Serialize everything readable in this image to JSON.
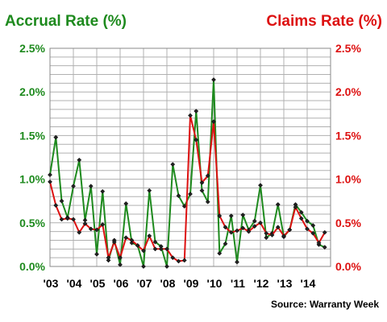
{
  "chart_data": {
    "type": "line",
    "left_axis_title": "Accrual Rate (%)",
    "right_axis_title": "Claims Rate (%)",
    "source": "Source: Warranty Week",
    "colors": {
      "accrual": "#1e8a1e",
      "claims": "#dd1111",
      "grid": "#b0b0b0",
      "plot_border": "#888888"
    },
    "ylim": [
      0,
      2.5
    ],
    "yticks_left": [
      {
        "v": 0,
        "label": "0.0%"
      },
      {
        "v": 0.5,
        "label": "0.5%"
      },
      {
        "v": 1.0,
        "label": "1.0%"
      },
      {
        "v": 1.5,
        "label": "1.5%"
      },
      {
        "v": 2.0,
        "label": "2.0%"
      },
      {
        "v": 2.5,
        "label": "2.5%"
      }
    ],
    "yticks_right": [
      {
        "v": 0,
        "label": "0.0%"
      },
      {
        "v": 0.5,
        "label": "0.5%"
      },
      {
        "v": 1.0,
        "label": "1.0%"
      },
      {
        "v": 1.5,
        "label": "1.5%"
      },
      {
        "v": 2.0,
        "label": "2.0%"
      },
      {
        "v": 2.5,
        "label": "2.5%"
      }
    ],
    "xlim": [
      2003,
      2015
    ],
    "xticks": [
      {
        "v": 2003,
        "label": "'03"
      },
      {
        "v": 2004,
        "label": "'04"
      },
      {
        "v": 2005,
        "label": "'05"
      },
      {
        "v": 2006,
        "label": "'06"
      },
      {
        "v": 2007,
        "label": "'07"
      },
      {
        "v": 2008,
        "label": "'08"
      },
      {
        "v": 2009,
        "label": "'09"
      },
      {
        "v": 2010,
        "label": "'10"
      },
      {
        "v": 2011,
        "label": "'11"
      },
      {
        "v": 2012,
        "label": "'12"
      },
      {
        "v": 2013,
        "label": "'13"
      },
      {
        "v": 2014,
        "label": "'14"
      }
    ],
    "series": [
      {
        "key": "accrual",
        "axis": "left",
        "points": [
          [
            2003.0,
            1.05
          ],
          [
            2003.25,
            1.48
          ],
          [
            2003.5,
            0.75
          ],
          [
            2003.75,
            0.56
          ],
          [
            2004.0,
            0.92
          ],
          [
            2004.25,
            1.22
          ],
          [
            2004.5,
            0.53
          ],
          [
            2004.75,
            0.92
          ],
          [
            2005.0,
            0.14
          ],
          [
            2005.25,
            0.86
          ],
          [
            2005.5,
            0.07
          ],
          [
            2005.75,
            0.3
          ],
          [
            2006.0,
            0.02
          ],
          [
            2006.25,
            0.72
          ],
          [
            2006.5,
            0.27
          ],
          [
            2006.75,
            0.24
          ],
          [
            2007.0,
            0.0
          ],
          [
            2007.25,
            0.87
          ],
          [
            2007.5,
            0.28
          ],
          [
            2007.75,
            0.23
          ],
          [
            2008.0,
            0.0
          ],
          [
            2008.25,
            1.17
          ],
          [
            2008.5,
            0.81
          ],
          [
            2008.75,
            0.69
          ],
          [
            2009.0,
            0.83
          ],
          [
            2009.25,
            1.78
          ],
          [
            2009.5,
            0.87
          ],
          [
            2009.75,
            0.74
          ],
          [
            2010.0,
            2.14
          ],
          [
            2010.25,
            0.15
          ],
          [
            2010.5,
            0.26
          ],
          [
            2010.75,
            0.58
          ],
          [
            2011.0,
            0.05
          ],
          [
            2011.25,
            0.59
          ],
          [
            2011.5,
            0.42
          ],
          [
            2011.75,
            0.52
          ],
          [
            2012.0,
            0.93
          ],
          [
            2012.25,
            0.33
          ],
          [
            2012.5,
            0.38
          ],
          [
            2012.75,
            0.71
          ],
          [
            2013.0,
            0.34
          ],
          [
            2013.25,
            0.42
          ],
          [
            2013.5,
            0.71
          ],
          [
            2013.75,
            0.62
          ],
          [
            2014.0,
            0.52
          ],
          [
            2014.25,
            0.47
          ],
          [
            2014.5,
            0.25
          ],
          [
            2014.75,
            0.22
          ]
        ]
      },
      {
        "key": "claims",
        "axis": "right",
        "points": [
          [
            2003.0,
            0.97
          ],
          [
            2003.25,
            0.7
          ],
          [
            2003.5,
            0.54
          ],
          [
            2003.75,
            0.55
          ],
          [
            2004.0,
            0.54
          ],
          [
            2004.25,
            0.39
          ],
          [
            2004.5,
            0.49
          ],
          [
            2004.75,
            0.43
          ],
          [
            2005.0,
            0.42
          ],
          [
            2005.25,
            0.48
          ],
          [
            2005.5,
            0.1
          ],
          [
            2005.75,
            0.28
          ],
          [
            2006.0,
            0.1
          ],
          [
            2006.25,
            0.33
          ],
          [
            2006.5,
            0.3
          ],
          [
            2006.75,
            0.24
          ],
          [
            2007.0,
            0.18
          ],
          [
            2007.25,
            0.35
          ],
          [
            2007.5,
            0.2
          ],
          [
            2007.75,
            0.2
          ],
          [
            2008.0,
            0.2
          ],
          [
            2008.25,
            0.1
          ],
          [
            2008.5,
            0.06
          ],
          [
            2008.75,
            0.07
          ],
          [
            2009.0,
            1.73
          ],
          [
            2009.25,
            1.45
          ],
          [
            2009.5,
            0.96
          ],
          [
            2009.75,
            1.04
          ],
          [
            2010.0,
            1.66
          ],
          [
            2010.25,
            0.58
          ],
          [
            2010.5,
            0.45
          ],
          [
            2010.75,
            0.39
          ],
          [
            2011.0,
            0.41
          ],
          [
            2011.25,
            0.44
          ],
          [
            2011.5,
            0.4
          ],
          [
            2011.75,
            0.46
          ],
          [
            2012.0,
            0.5
          ],
          [
            2012.25,
            0.38
          ],
          [
            2012.5,
            0.36
          ],
          [
            2012.75,
            0.45
          ],
          [
            2013.0,
            0.35
          ],
          [
            2013.25,
            0.42
          ],
          [
            2013.5,
            0.68
          ],
          [
            2013.75,
            0.55
          ],
          [
            2014.0,
            0.43
          ],
          [
            2014.25,
            0.38
          ],
          [
            2014.5,
            0.27
          ],
          [
            2014.75,
            0.39
          ]
        ]
      }
    ]
  }
}
